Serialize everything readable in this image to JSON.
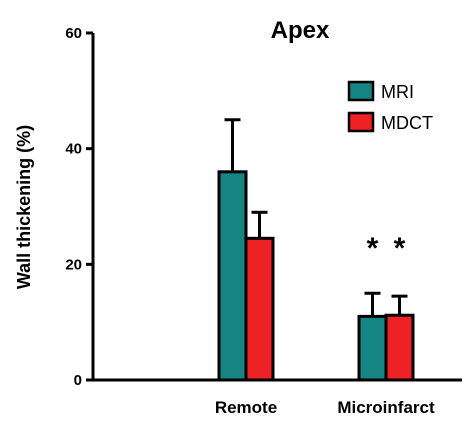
{
  "chart_data": {
    "type": "bar",
    "title": "Apex",
    "xlabel": "",
    "ylabel": "Wall thickening  (%)",
    "ylim": [
      0,
      60
    ],
    "yticks": [
      "0",
      "20",
      "40",
      "60"
    ],
    "categories": [
      "Remote",
      "Microinfarct"
    ],
    "series": [
      {
        "name": "MRI",
        "color": "#168482",
        "values": [
          36,
          11
        ],
        "errors": [
          9,
          4
        ]
      },
      {
        "name": "MDCT",
        "color": "#ee2125",
        "values": [
          24.5,
          11.2
        ],
        "errors": [
          4.5,
          3.3
        ]
      }
    ],
    "annotations": [
      "*",
      "*"
    ],
    "legend_position": "top-right",
    "grid": false
  }
}
